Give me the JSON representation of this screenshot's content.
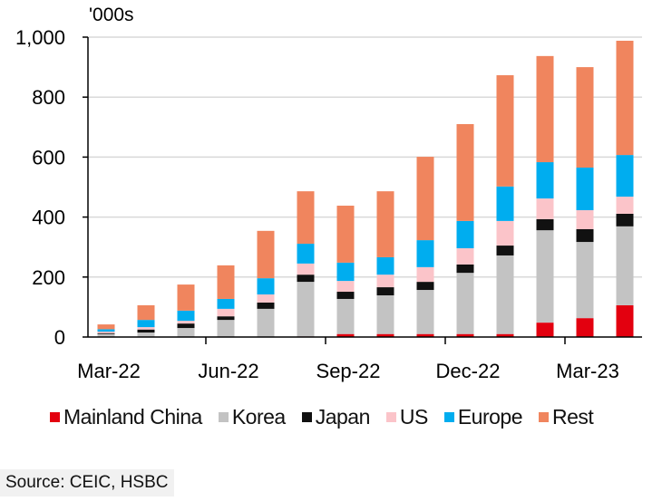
{
  "chart_data": {
    "type": "bar",
    "stacked": true,
    "unit_label": "'000s",
    "categories": [
      "Mar-22",
      "Apr-22",
      "May-22",
      "Jun-22",
      "Jul-22",
      "Aug-22",
      "Sep-22",
      "Oct-22",
      "Nov-22",
      "Dec-22",
      "Jan-23",
      "Feb-23",
      "Mar-23",
      "Apr-23"
    ],
    "x_tick_labels": [
      "Mar-22",
      "Jun-22",
      "Sep-22",
      "Dec-22",
      "Mar-23"
    ],
    "y_ticks": [
      0,
      200,
      400,
      600,
      800,
      1000
    ],
    "y_tick_labels": [
      "0",
      "200",
      "400",
      "600",
      "800",
      "1,000"
    ],
    "ylim": [
      0,
      1000
    ],
    "grid": true,
    "legend_position": "bottom",
    "series": [
      {
        "name": "Mainland China",
        "color": "#e3000f",
        "values": [
          0,
          0,
          0,
          0,
          0,
          2,
          10,
          10,
          10,
          10,
          10,
          48,
          63,
          106
        ]
      },
      {
        "name": "Korea",
        "color": "#c3c3c3",
        "values": [
          10,
          15,
          30,
          57,
          94,
          182,
          117,
          129,
          147,
          204,
          262,
          308,
          254,
          263
        ]
      },
      {
        "name": "Japan",
        "color": "#111111",
        "values": [
          3,
          10,
          15,
          12,
          21,
          24,
          24,
          27,
          27,
          28,
          33,
          37,
          43,
          42
        ]
      },
      {
        "name": "US",
        "color": "#fbc4c9",
        "values": [
          5,
          8,
          9,
          25,
          27,
          37,
          36,
          42,
          49,
          54,
          82,
          69,
          63,
          57
        ]
      },
      {
        "name": "Europe",
        "color": "#00adef",
        "values": [
          8,
          24,
          34,
          33,
          54,
          66,
          61,
          58,
          90,
          91,
          115,
          121,
          142,
          139
        ]
      },
      {
        "name": "Rest",
        "color": "#f0855e",
        "values": [
          16,
          49,
          87,
          112,
          158,
          175,
          190,
          220,
          278,
          323,
          371,
          354,
          335,
          381
        ]
      }
    ]
  },
  "source": "Source: CEIC, HSBC"
}
